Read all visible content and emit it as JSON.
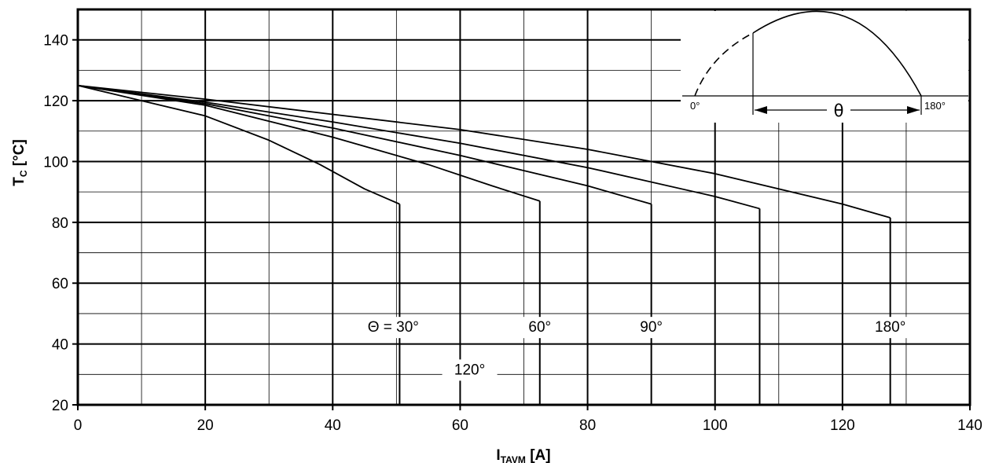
{
  "chart_data": {
    "type": "line",
    "xlabel": {
      "main": "I",
      "sub": "TAVM",
      "unit": " [A]"
    },
    "ylabel": {
      "main": "T",
      "sub": "C",
      "unit": " [°C]"
    },
    "xlim": [
      0,
      140
    ],
    "ylim": [
      20,
      150
    ],
    "x_ticks": [
      "0",
      "20",
      "40",
      "60",
      "80",
      "100",
      "120",
      "140"
    ],
    "y_ticks": [
      "20",
      "40",
      "60",
      "80",
      "100",
      "120",
      "140"
    ],
    "grid": true,
    "series": [
      {
        "name": "Θ = 30°",
        "points": [
          [
            0,
            125
          ],
          [
            10,
            120
          ],
          [
            20,
            115
          ],
          [
            30,
            107
          ],
          [
            38,
            99
          ],
          [
            45,
            91
          ],
          [
            50.5,
            86
          ]
        ],
        "vertical_drop_x": 50.5
      },
      {
        "name": "60°",
        "points": [
          [
            0,
            125
          ],
          [
            20,
            118.5
          ],
          [
            40,
            108
          ],
          [
            55,
            99
          ],
          [
            65,
            92
          ],
          [
            72.5,
            87
          ]
        ],
        "vertical_drop_x": 72.5
      },
      {
        "name": "90°",
        "points": [
          [
            0,
            125
          ],
          [
            20,
            119
          ],
          [
            40,
            111
          ],
          [
            60,
            102
          ],
          [
            80,
            92
          ],
          [
            90,
            86
          ]
        ],
        "vertical_drop_x": 90
      },
      {
        "name": "120°",
        "points": [
          [
            0,
            125
          ],
          [
            20,
            119.5
          ],
          [
            40,
            113
          ],
          [
            60,
            106
          ],
          [
            80,
            98
          ],
          [
            100,
            88.5
          ],
          [
            107,
            84.5
          ]
        ],
        "vertical_drop_x": 107
      },
      {
        "name": "180°",
        "points": [
          [
            0,
            125
          ],
          [
            20,
            120.5
          ],
          [
            40,
            115.5
          ],
          [
            60,
            110.5
          ],
          [
            80,
            104
          ],
          [
            100,
            96
          ],
          [
            120,
            86
          ],
          [
            127.5,
            81.5
          ]
        ],
        "vertical_drop_x": 127.5
      }
    ],
    "inset": {
      "label_start": "0°",
      "label_end": "180°",
      "label_theta": "θ"
    }
  }
}
